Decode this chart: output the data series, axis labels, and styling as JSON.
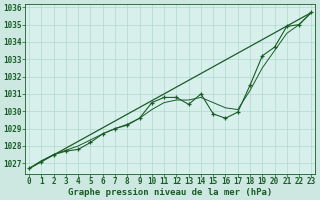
{
  "title": "Graphe pression niveau de la mer (hPa)",
  "bg_color": "#cce8e0",
  "plot_bg_color": "#d8f0ec",
  "grid_color": "#b0d8d0",
  "line_color": "#1a5c28",
  "xlim": [
    -0.3,
    23.3
  ],
  "ylim": [
    1026.4,
    1036.2
  ],
  "xticks": [
    0,
    1,
    2,
    3,
    4,
    5,
    6,
    7,
    8,
    9,
    10,
    11,
    12,
    13,
    14,
    15,
    16,
    17,
    18,
    19,
    20,
    21,
    22,
    23
  ],
  "yticks": [
    1027,
    1028,
    1029,
    1030,
    1031,
    1032,
    1033,
    1034,
    1035,
    1036
  ],
  "trend_x": [
    0,
    23
  ],
  "trend_y": [
    1026.7,
    1035.7
  ],
  "smooth_x": [
    0,
    1,
    2,
    3,
    4,
    5,
    6,
    7,
    8,
    9,
    10,
    11,
    12,
    13,
    14,
    15,
    16,
    17,
    18,
    19,
    20,
    21,
    22,
    23
  ],
  "smooth_y": [
    1026.7,
    1027.15,
    1027.5,
    1027.75,
    1028.0,
    1028.35,
    1028.7,
    1029.0,
    1029.25,
    1029.6,
    1030.1,
    1030.5,
    1030.65,
    1030.65,
    1030.8,
    1030.5,
    1030.2,
    1030.1,
    1031.2,
    1032.5,
    1033.5,
    1034.5,
    1035.0,
    1035.7
  ],
  "main_x": [
    0,
    1,
    2,
    3,
    4,
    5,
    6,
    7,
    8,
    9,
    10,
    11,
    12,
    13,
    14,
    15,
    16,
    17,
    18,
    19,
    20,
    21,
    22,
    23
  ],
  "main_y": [
    1026.7,
    1027.1,
    1027.5,
    1027.7,
    1027.8,
    1028.2,
    1028.7,
    1029.0,
    1029.2,
    1029.6,
    1030.5,
    1030.8,
    1030.8,
    1030.4,
    1031.0,
    1029.85,
    1029.6,
    1029.95,
    1031.5,
    1033.2,
    1033.7,
    1034.9,
    1035.0,
    1035.7
  ],
  "xlabel_fontsize": 5.5,
  "ylabel_fontsize": 5.5,
  "title_fontsize": 6.5
}
